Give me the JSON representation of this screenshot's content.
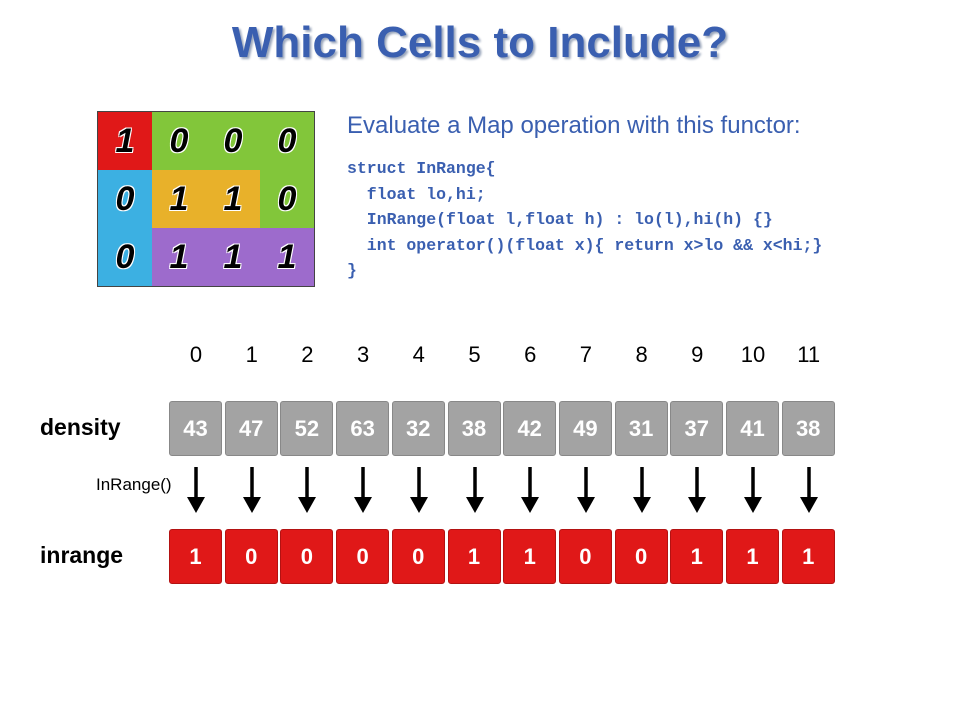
{
  "title": "Which Cells to Include?",
  "grid": {
    "rows": [
      [
        {
          "value": "1",
          "color": "#e01818"
        },
        {
          "value": "0",
          "color": "#82c63a"
        },
        {
          "value": "0",
          "color": "#82c63a"
        },
        {
          "value": "0",
          "color": "#82c63a"
        }
      ],
      [
        {
          "value": "0",
          "color": "#3cb0e2"
        },
        {
          "value": "1",
          "color": "#e8b12a"
        },
        {
          "value": "1",
          "color": "#e8b12a"
        },
        {
          "value": "0",
          "color": "#82c63a"
        }
      ],
      [
        {
          "value": "0",
          "color": "#3cb0e2"
        },
        {
          "value": "1",
          "color": "#9d6bcc"
        },
        {
          "value": "1",
          "color": "#9d6bcc"
        },
        {
          "value": "1",
          "color": "#9d6bcc"
        }
      ]
    ]
  },
  "description": "Evaluate a Map operation with this functor:",
  "code": [
    "struct InRange{",
    "  float lo,hi;",
    "  InRange(float l,float h) : lo(l),hi(h) {}",
    "  int operator()(float x){ return x>lo && x<hi;}",
    "}"
  ],
  "indices": [
    "0",
    "1",
    "2",
    "3",
    "4",
    "5",
    "6",
    "7",
    "8",
    "9",
    "10",
    "11"
  ],
  "density": {
    "label": "density",
    "values": [
      "43",
      "47",
      "52",
      "63",
      "32",
      "38",
      "42",
      "49",
      "31",
      "37",
      "41",
      "38"
    ],
    "color": "#a3a3a3"
  },
  "functor_label": "InRange()",
  "inrange": {
    "label": "inrange",
    "values": [
      "1",
      "0",
      "0",
      "0",
      "0",
      "1",
      "1",
      "0",
      "0",
      "1",
      "1",
      "1"
    ],
    "color": "#e01818"
  }
}
